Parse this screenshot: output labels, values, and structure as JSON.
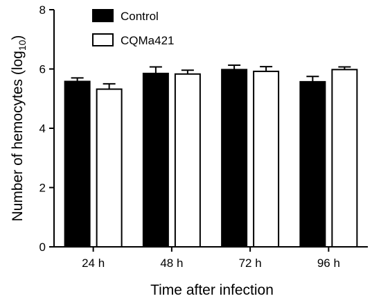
{
  "chart_data": {
    "type": "bar",
    "xlabel": "Time after infection",
    "ylabel": {
      "main": "Number of hemocytes (log",
      "subscript": "10",
      "close": ")"
    },
    "ylim": [
      0,
      8
    ],
    "yticks": [
      "0",
      "2",
      "4",
      "6",
      "8"
    ],
    "categories": [
      "24 h",
      "48 h",
      "72 h",
      "96 h"
    ],
    "series": [
      {
        "name": "Control",
        "fill": "#000000",
        "stroke": "#000000",
        "values": [
          5.58,
          5.85,
          5.98,
          5.57
        ],
        "errors": [
          0.12,
          0.22,
          0.15,
          0.18
        ]
      },
      {
        "name": "CQMa421",
        "fill": "#ffffff",
        "stroke": "#000000",
        "values": [
          5.32,
          5.83,
          5.92,
          5.98
        ],
        "errors": [
          0.18,
          0.13,
          0.16,
          0.09
        ]
      }
    ],
    "legend_position": "top-left",
    "grid": false
  }
}
